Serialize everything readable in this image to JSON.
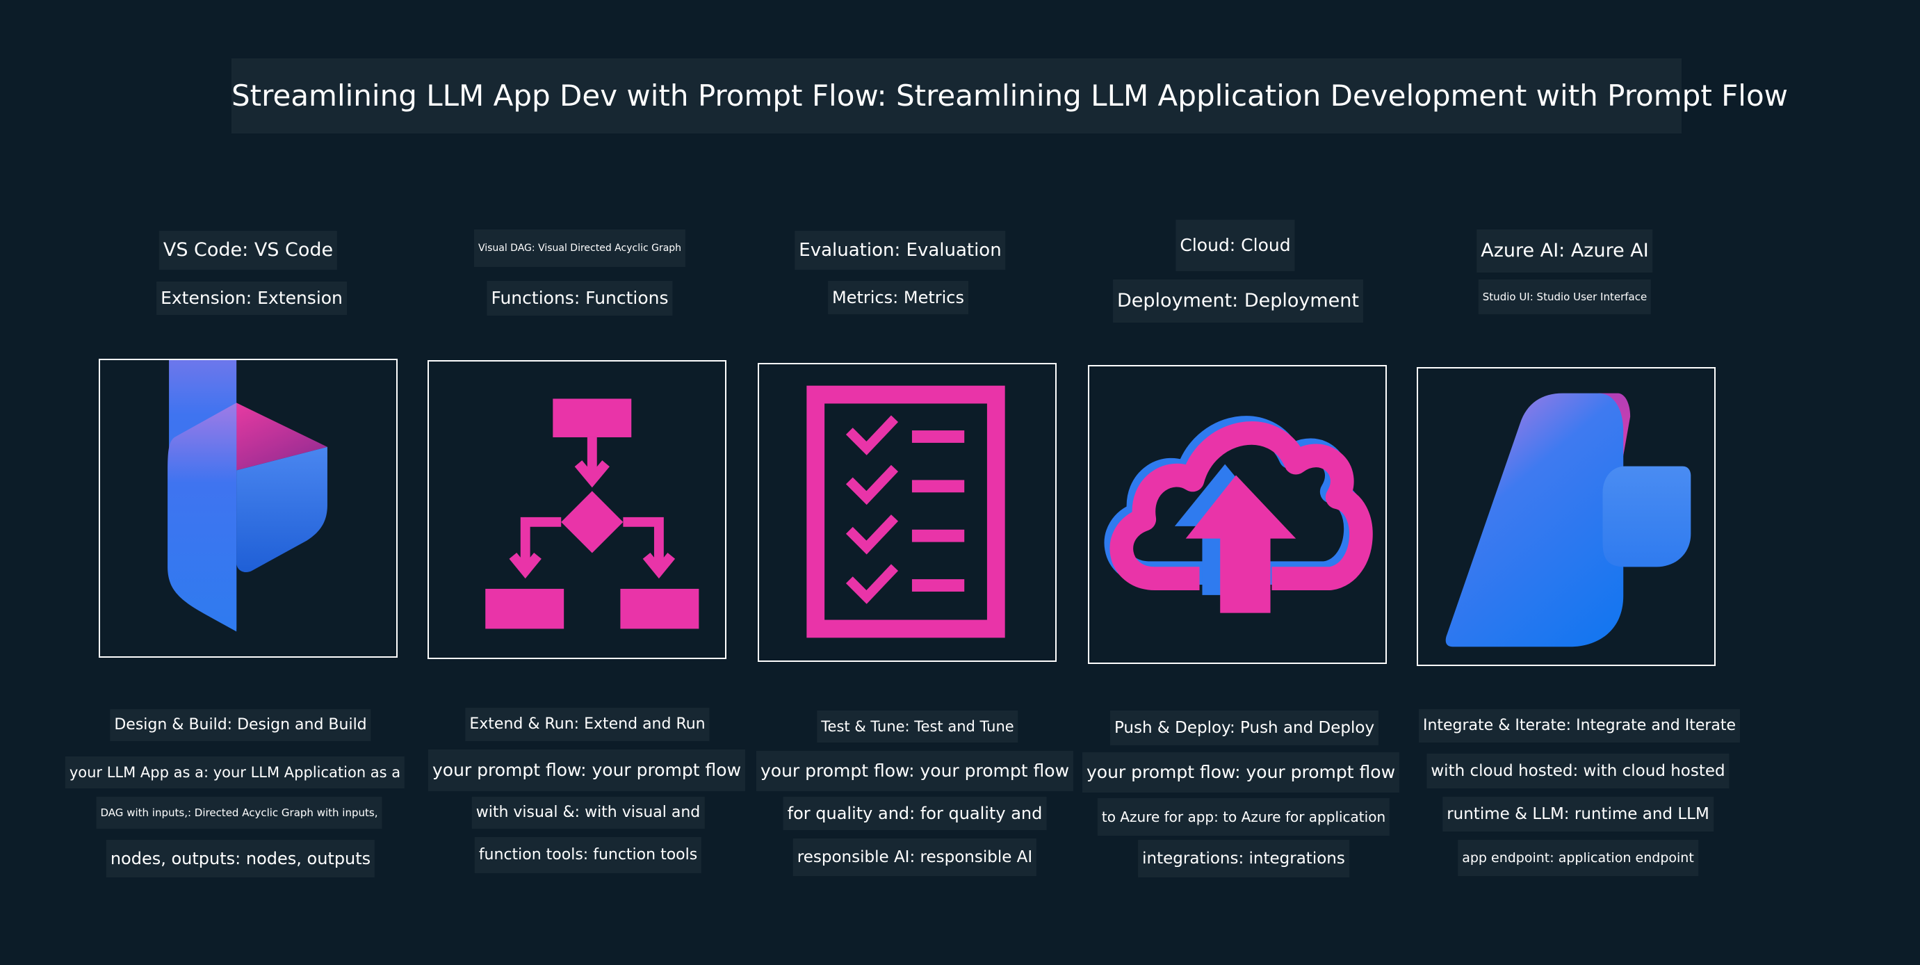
{
  "title": "Streamlining LLM App Dev with Prompt Flow: Streamlining LLM Application Development with Prompt Flow",
  "colors": {
    "background": "#0c1c28",
    "label_background": "#172732",
    "accent_pink": "#e934a8",
    "accent_blue": "#2f7bef"
  },
  "columns": [
    {
      "icon": "prompt-flow-logo-icon",
      "header": [
        "VS Code: VS Code",
        "Extension: Extension"
      ],
      "body": [
        "Design & Build: Design and Build",
        "your LLM App as a: your LLM Application as a",
        "DAG with inputs,: Directed Acyclic Graph with inputs,",
        "nodes, outputs: nodes, outputs"
      ]
    },
    {
      "icon": "flowchart-icon",
      "header": [
        "Visual DAG: Visual Directed Acyclic Graph",
        "Functions: Functions"
      ],
      "body": [
        "Extend & Run: Extend and Run",
        "your prompt flow: your prompt flow",
        "with visual &: with visual and",
        "function tools: function tools"
      ]
    },
    {
      "icon": "checklist-icon",
      "header": [
        "Evaluation: Evaluation",
        "Metrics: Metrics"
      ],
      "body": [
        "Test & Tune: Test and Tune",
        "your prompt flow: your prompt flow",
        "for quality and: for quality and",
        "responsible AI: responsible AI"
      ]
    },
    {
      "icon": "cloud-upload-icon",
      "header": [
        "Cloud: Cloud",
        "Deployment: Deployment"
      ],
      "body": [
        "Push & Deploy: Push and Deploy",
        "your prompt flow: your prompt flow",
        "to Azure for app: to Azure for application",
        "integrations: integrations"
      ]
    },
    {
      "icon": "azure-ai-logo-icon",
      "header": [
        "Azure AI: Azure AI",
        "Studio UI: Studio User Interface"
      ],
      "body": [
        "Integrate & Iterate: Integrate and Iterate",
        "with cloud hosted: with cloud hosted",
        "runtime & LLM: runtime and LLM",
        "app endpoint: application endpoint"
      ]
    }
  ]
}
